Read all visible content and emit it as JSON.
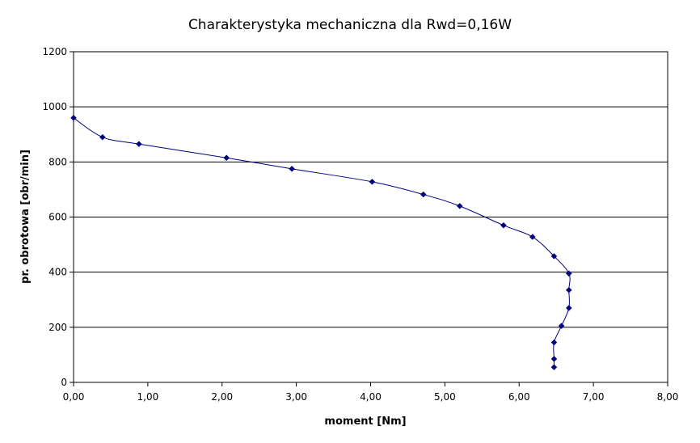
{
  "chart_data": {
    "type": "line",
    "title": "Charakterystyka mechaniczna dla Rwd=0,16W",
    "xlabel": "moment [Nm]",
    "ylabel": "pr. obrotowa [obr/min]",
    "xlim": [
      0,
      8
    ],
    "ylim": [
      0,
      1200
    ],
    "x_ticks": [
      "0,00",
      "1,00",
      "2,00",
      "3,00",
      "4,00",
      "5,00",
      "6,00",
      "7,00",
      "8,00"
    ],
    "y_ticks": [
      "0",
      "200",
      "400",
      "600",
      "800",
      "1000",
      "1200"
    ],
    "grid": "horizontal",
    "legend": "none",
    "series": [
      {
        "color": "#000080",
        "x": [
          0.0,
          0.39,
          0.88,
          2.06,
          2.94,
          4.02,
          4.71,
          5.2,
          5.79,
          6.18,
          6.47,
          6.67,
          6.67,
          6.67,
          6.57,
          6.47,
          6.47,
          6.47
        ],
        "y": [
          960,
          890,
          865,
          815,
          775,
          728,
          682,
          640,
          570,
          528,
          458,
          395,
          335,
          270,
          205,
          145,
          85,
          55
        ]
      }
    ]
  }
}
